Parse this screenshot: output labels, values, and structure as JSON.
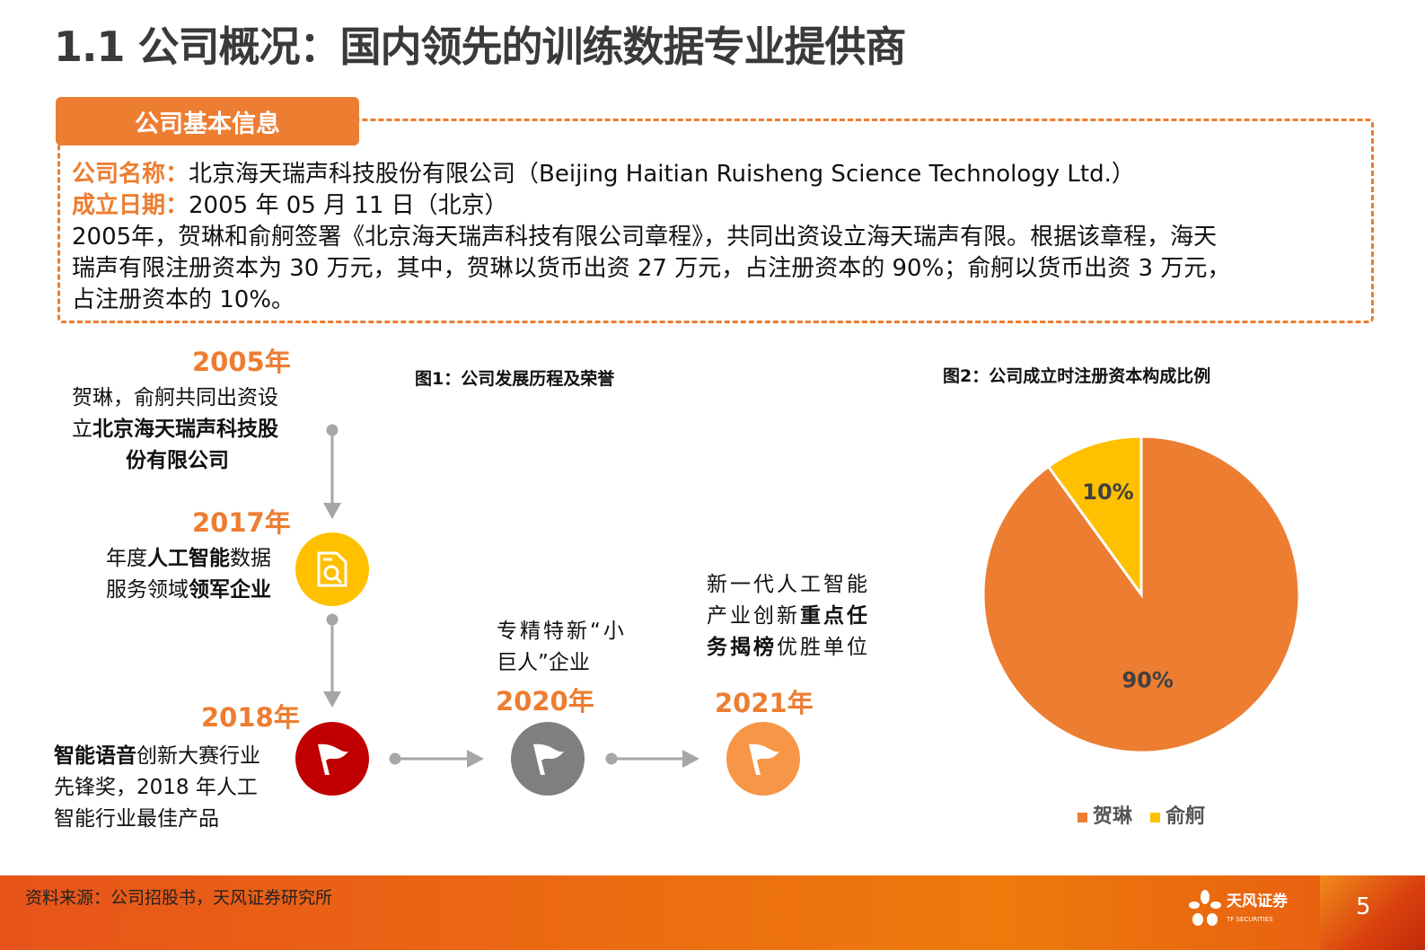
{
  "title": "1.1 公司概况：国内领先的训练数据专业提供商",
  "info": {
    "tab": "公司基本信息",
    "name_label": "公司名称：",
    "name_value": "北京海天瑞声科技股份有限公司（Beijing Haitian Ruisheng Science Technology Ltd.）",
    "date_label": "成立日期：",
    "date_value": "2005 年 05 月 11 日（北京）",
    "lines": [
      "2005年，贺琳和俞舸签署《北京海天瑞声科技有限公司章程》，共同出资设立海天瑞声有限。根据该章程，海天",
      "瑞声有限注册资本为 30 万元，其中，贺琳以货币出资 27 万元，占注册资本的 90%；俞舸以货币出资 3 万元，",
      "占注册资本的 10%。"
    ]
  },
  "fig1_title": "图1：公司发展历程及荣誉",
  "fig2_title": "图2：公司成立时注册资本构成比例",
  "timeline": {
    "y2005": {
      "year": "2005年",
      "l1": "贺琳，俞舸共同出资设",
      "l2a": "立",
      "l2b": "北京海天瑞声科技股",
      "l3": "份有限公司"
    },
    "y2017": {
      "year": "2017年",
      "l1a": "年度",
      "l1b": "人工智能",
      "l1c": "数据",
      "l2a": "服务领域",
      "l2b": "领军企业"
    },
    "y2018": {
      "year": "2018年",
      "l1a": "智能语音",
      "l1b": "创新大赛行业",
      "l2": "先锋奖，2018  年人工",
      "l3": "智能行业最佳产品"
    },
    "y2020": {
      "year": "2020年",
      "l1": "专精特新“小",
      "l2": "巨人”企业"
    },
    "y2021": {
      "year": "2021年",
      "l1": "新一代人工智能",
      "l2a": "产业创新",
      "l2b": "重点任",
      "l3a": "务揭榜",
      "l3b": "优胜单位"
    }
  },
  "chart_data": {
    "type": "pie",
    "title": "图2：公司成立时注册资本构成比例",
    "categories": [
      "贺琳",
      "俞舸"
    ],
    "values": [
      90,
      10
    ],
    "labels": [
      "90%",
      "10%"
    ],
    "colors": [
      "#ED7D31",
      "#FFC000"
    ],
    "legend": "bottom"
  },
  "footer": {
    "source": "资料来源：公司招股书，天风证券研究所",
    "logo": "天风证券",
    "logo_sub": "TF SECURITIES",
    "page": "5"
  }
}
